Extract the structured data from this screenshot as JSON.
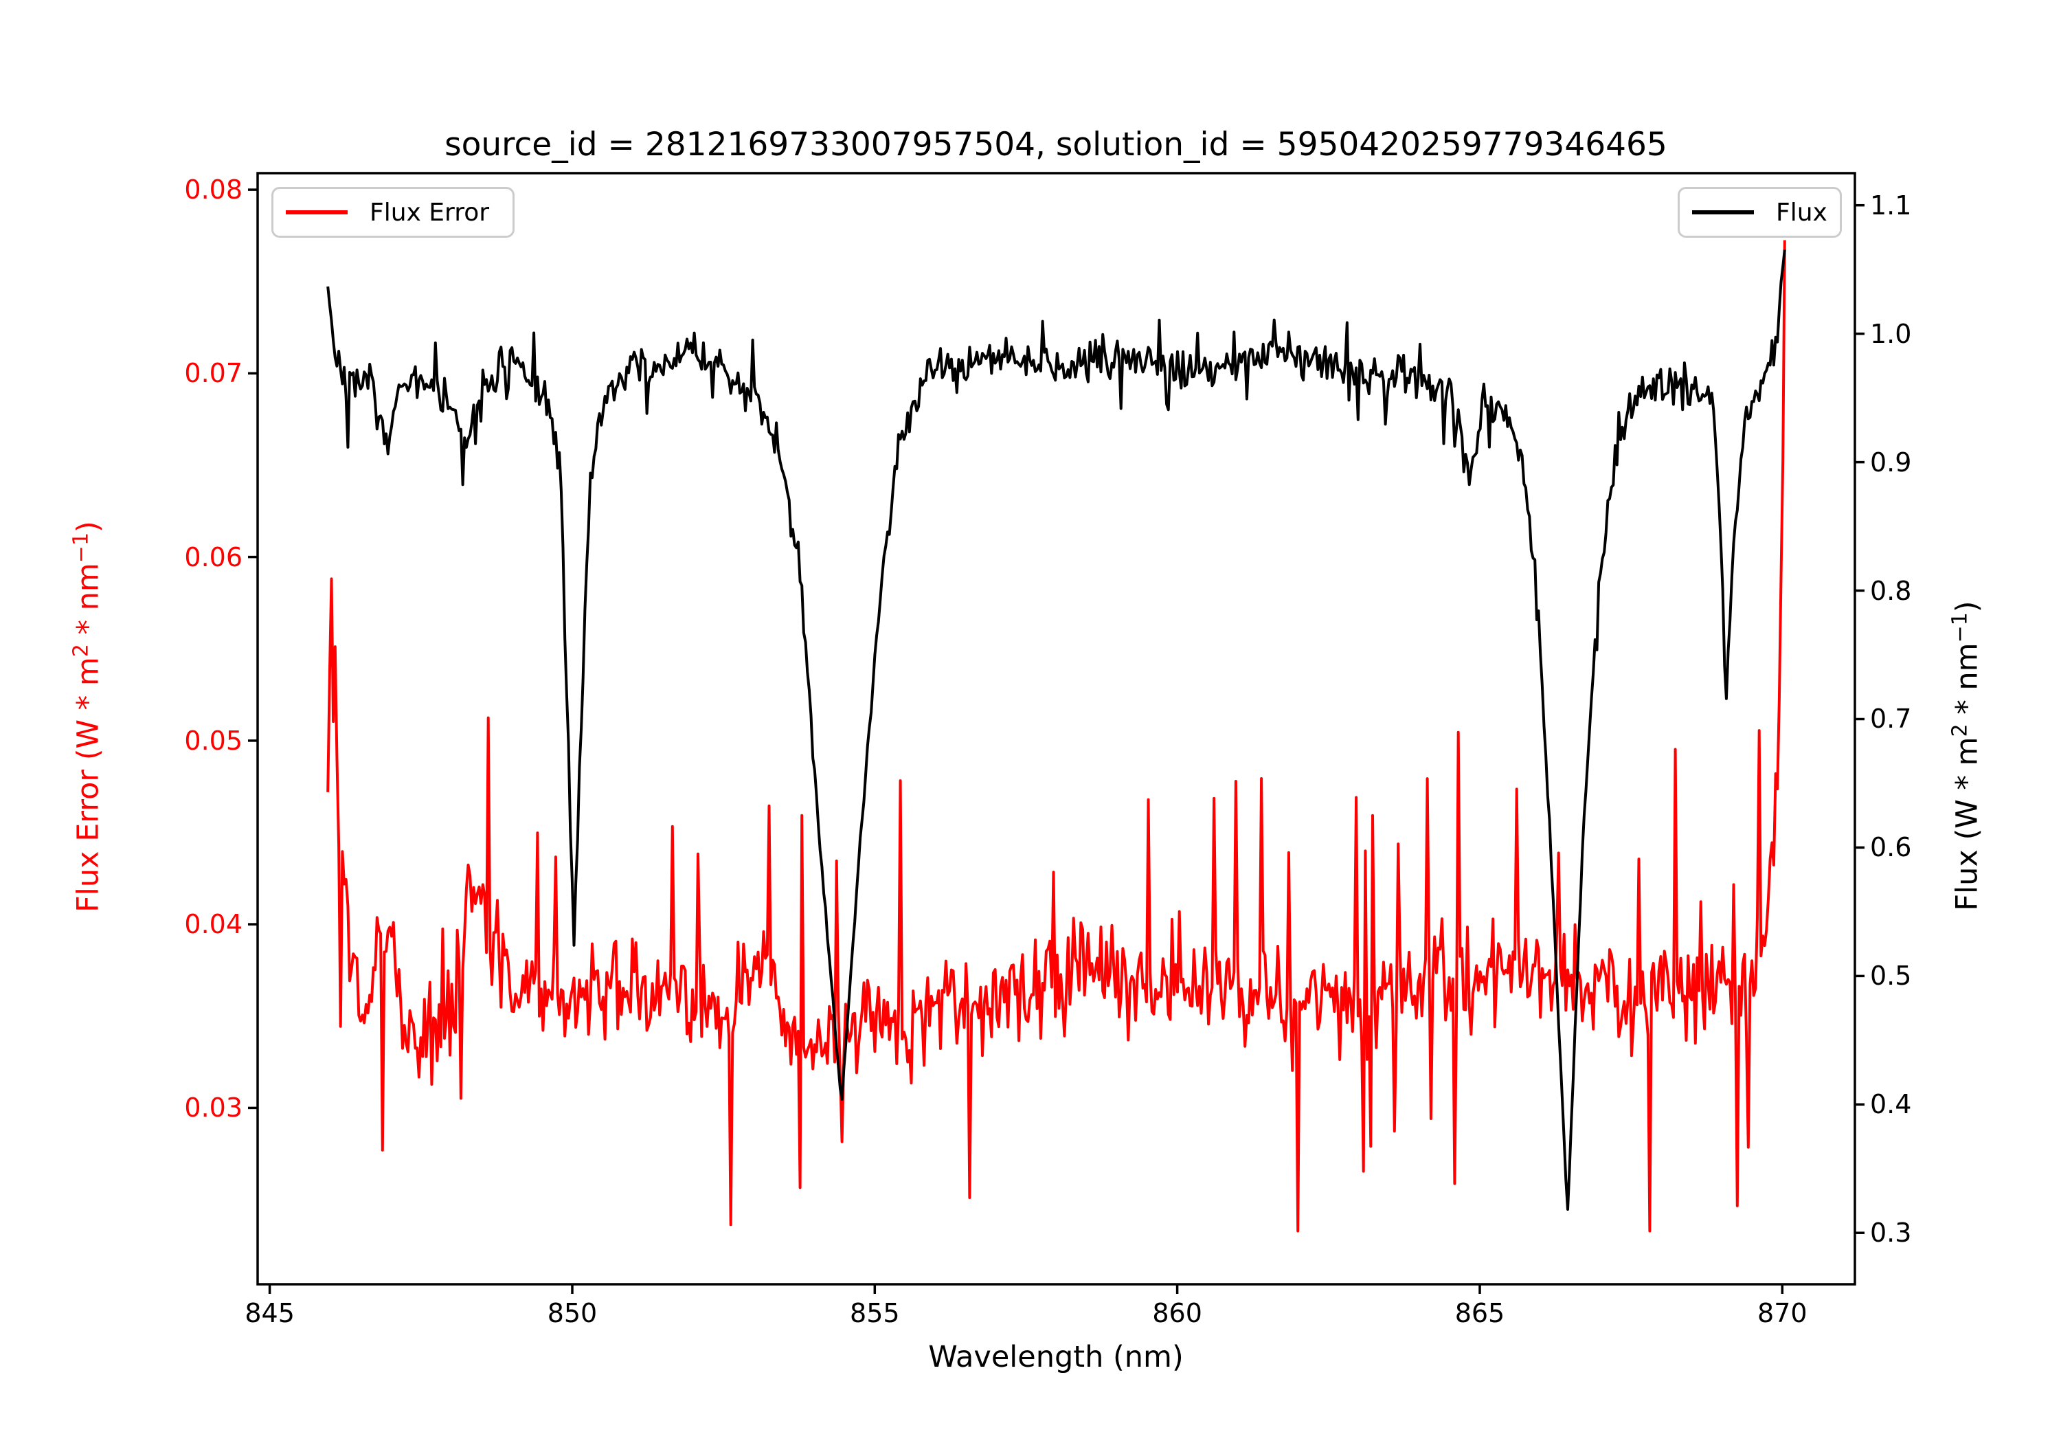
{
  "figure": {
    "background": "#ffffff"
  },
  "chart_data": {
    "type": "line",
    "title": "source_id = 2812169733007957504, solution_id = 5950420259779346465",
    "xlabel": "Wavelength (nm)",
    "xlim": [
      844.8,
      871.2
    ],
    "x_ticks": [
      845,
      850,
      855,
      860,
      865,
      870
    ],
    "x_tick_labels": [
      "845",
      "850",
      "855",
      "860",
      "865",
      "870"
    ],
    "x_data_range": [
      845.96,
      870.04
    ],
    "grid": false,
    "left_axis": {
      "label": "Flux Error (W * m^2 * nm^-1)",
      "label_parts": {
        "p1": "Flux Error (W * m",
        "s1": "2",
        "p2": " * nm",
        "s2": "−1",
        "p3": ")"
      },
      "color": "#ff0000",
      "lim": [
        0.0204,
        0.0809
      ],
      "ticks": [
        0.03,
        0.04,
        0.05,
        0.06,
        0.07,
        0.08
      ],
      "tick_labels": [
        "0.03",
        "0.04",
        "0.05",
        "0.06",
        "0.07",
        "0.08"
      ]
    },
    "right_axis": {
      "label": "Flux (W * m^2 * nm^-1)",
      "label_parts": {
        "p1": "Flux (W * m",
        "s1": "2",
        "p2": " * nm",
        "s2": "−1",
        "p3": ")"
      },
      "color": "#000000",
      "lim": [
        0.26,
        1.125
      ],
      "ticks": [
        0.3,
        0.4,
        0.5,
        0.6,
        0.7,
        0.8,
        0.9,
        1.0,
        1.1
      ],
      "tick_labels": [
        "0.3",
        "0.4",
        "0.5",
        "0.6",
        "0.7",
        "0.8",
        "0.9",
        "1.0",
        "1.1"
      ]
    },
    "legend": {
      "left": {
        "label": "Flux Error",
        "color": "#ff0000",
        "loc": "upper left"
      },
      "right": {
        "label": "Flux",
        "color": "#000000",
        "loc": "upper right"
      }
    },
    "series": [
      {
        "name": "Flux Error",
        "axis": "left",
        "color": "#ff0000",
        "line_width": 4,
        "n_points": 800,
        "seed": 101,
        "noise_sigma": 0.0033,
        "spike_prob": 0.05,
        "spike_mag": 0.009,
        "spike_up_bias": 0.65,
        "clamp": [
          0.0233,
          0.0782
        ],
        "profile": [
          [
            845.96,
            0.047
          ],
          [
            846.02,
            0.0578
          ],
          [
            846.1,
            0.0485
          ],
          [
            846.3,
            0.0395
          ],
          [
            846.55,
            0.0345
          ],
          [
            846.9,
            0.0405
          ],
          [
            847.2,
            0.0348
          ],
          [
            847.6,
            0.0332
          ],
          [
            848.0,
            0.0358
          ],
          [
            848.3,
            0.0425
          ],
          [
            848.65,
            0.0402
          ],
          [
            849.0,
            0.0372
          ],
          [
            849.5,
            0.0356
          ],
          [
            850.0,
            0.0356
          ],
          [
            850.5,
            0.0362
          ],
          [
            851.0,
            0.0368
          ],
          [
            851.6,
            0.036
          ],
          [
            852.2,
            0.0355
          ],
          [
            852.8,
            0.0362
          ],
          [
            853.2,
            0.0372
          ],
          [
            853.6,
            0.0342
          ],
          [
            854.0,
            0.0335
          ],
          [
            854.5,
            0.034
          ],
          [
            855.0,
            0.0347
          ],
          [
            855.5,
            0.034
          ],
          [
            856.0,
            0.0352
          ],
          [
            856.5,
            0.036
          ],
          [
            857.0,
            0.0362
          ],
          [
            857.6,
            0.0366
          ],
          [
            858.2,
            0.0372
          ],
          [
            858.6,
            0.038
          ],
          [
            859.0,
            0.0366
          ],
          [
            859.5,
            0.036
          ],
          [
            860.0,
            0.0366
          ],
          [
            860.6,
            0.0372
          ],
          [
            861.2,
            0.0366
          ],
          [
            861.8,
            0.036
          ],
          [
            862.4,
            0.0355
          ],
          [
            863.0,
            0.0356
          ],
          [
            863.6,
            0.0362
          ],
          [
            864.2,
            0.0366
          ],
          [
            864.8,
            0.0372
          ],
          [
            865.4,
            0.0375
          ],
          [
            866.0,
            0.0377
          ],
          [
            866.5,
            0.0371
          ],
          [
            867.0,
            0.0366
          ],
          [
            867.5,
            0.036
          ],
          [
            868.0,
            0.0366
          ],
          [
            868.6,
            0.0362
          ],
          [
            869.1,
            0.0366
          ],
          [
            869.5,
            0.0372
          ],
          [
            869.8,
            0.0405
          ],
          [
            869.93,
            0.049
          ],
          [
            870.0,
            0.062
          ],
          [
            870.04,
            0.0775
          ]
        ]
      },
      {
        "name": "Flux",
        "axis": "right",
        "color": "#000000",
        "line_width": 4,
        "n_points": 800,
        "seed": 7,
        "noise_sigma": 0.018,
        "spike_prob": 0.05,
        "spike_mag": 0.03,
        "spike_up_bias": 0.38,
        "clamp": [
          0.285,
          1.085
        ],
        "profile": [
          [
            845.96,
            1.04
          ],
          [
            846.1,
            0.98
          ],
          [
            846.35,
            0.955
          ],
          [
            846.7,
            0.965
          ],
          [
            846.95,
            0.905
          ],
          [
            847.1,
            0.95
          ],
          [
            847.5,
            0.965
          ],
          [
            847.9,
            0.95
          ],
          [
            848.3,
            0.91
          ],
          [
            848.45,
            0.955
          ],
          [
            848.9,
            0.975
          ],
          [
            849.3,
            0.965
          ],
          [
            849.6,
            0.945
          ],
          [
            849.8,
            0.9
          ],
          [
            849.95,
            0.66
          ],
          [
            850.03,
            0.525
          ],
          [
            850.12,
            0.66
          ],
          [
            850.3,
            0.895
          ],
          [
            850.6,
            0.955
          ],
          [
            851.0,
            0.975
          ],
          [
            851.5,
            0.972
          ],
          [
            852.0,
            0.988
          ],
          [
            852.5,
            0.972
          ],
          [
            853.0,
            0.955
          ],
          [
            853.4,
            0.915
          ],
          [
            853.8,
            0.8
          ],
          [
            854.1,
            0.6
          ],
          [
            854.45,
            0.4
          ],
          [
            854.8,
            0.63
          ],
          [
            855.1,
            0.8
          ],
          [
            855.4,
            0.92
          ],
          [
            855.8,
            0.965
          ],
          [
            856.3,
            0.975
          ],
          [
            857.0,
            0.985
          ],
          [
            857.5,
            0.978
          ],
          [
            858.0,
            0.972
          ],
          [
            858.6,
            0.978
          ],
          [
            859.2,
            0.985
          ],
          [
            859.8,
            0.975
          ],
          [
            860.4,
            0.972
          ],
          [
            861.0,
            0.978
          ],
          [
            861.6,
            0.985
          ],
          [
            862.2,
            0.98
          ],
          [
            862.8,
            0.972
          ],
          [
            863.4,
            0.968
          ],
          [
            864.0,
            0.965
          ],
          [
            864.55,
            0.955
          ],
          [
            864.85,
            0.885
          ],
          [
            865.05,
            0.95
          ],
          [
            865.35,
            0.945
          ],
          [
            865.65,
            0.915
          ],
          [
            865.95,
            0.8
          ],
          [
            866.15,
            0.62
          ],
          [
            866.45,
            0.315
          ],
          [
            866.7,
            0.6
          ],
          [
            866.95,
            0.8
          ],
          [
            867.3,
            0.925
          ],
          [
            867.7,
            0.958
          ],
          [
            868.1,
            0.965
          ],
          [
            868.5,
            0.958
          ],
          [
            868.85,
            0.95
          ],
          [
            869.0,
            0.82
          ],
          [
            869.07,
            0.705
          ],
          [
            869.16,
            0.82
          ],
          [
            869.4,
            0.945
          ],
          [
            869.7,
            0.962
          ],
          [
            869.9,
            0.995
          ],
          [
            870.0,
            1.045
          ],
          [
            870.04,
            1.065
          ]
        ]
      }
    ]
  }
}
